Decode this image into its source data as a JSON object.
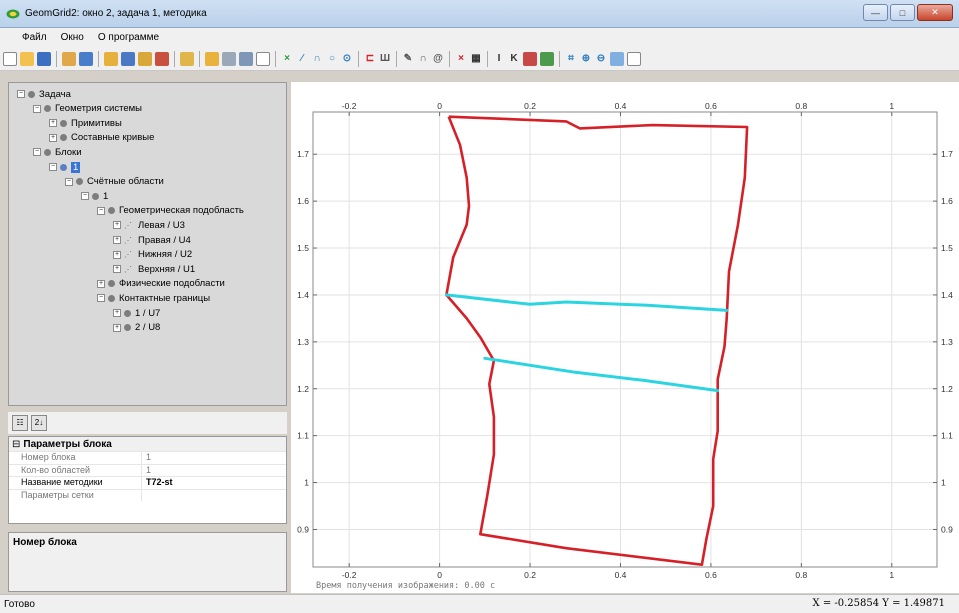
{
  "window": {
    "title": "GeomGrid2: окно 2, задача 1, методика",
    "min": "—",
    "max": "□",
    "close": "✕"
  },
  "menu": [
    "Файл",
    "Окно",
    "О программе"
  ],
  "tree": [
    {
      "label": "Задача",
      "level": 0,
      "icon": "dot"
    },
    {
      "label": "Геометрия системы",
      "level": 1,
      "icon": "dot"
    },
    {
      "label": "Примитивы",
      "level": 2,
      "icon": "dot"
    },
    {
      "label": "Составные кривые",
      "level": 2,
      "icon": "dot"
    },
    {
      "label": "Блоки",
      "level": 1,
      "icon": "dot"
    },
    {
      "label": "1",
      "level": 2,
      "icon": "dot",
      "selected": true
    },
    {
      "label": "Счётные области",
      "level": 3,
      "icon": "dot"
    },
    {
      "label": "1",
      "level": 4,
      "icon": "dot"
    },
    {
      "label": "Геометрическая подобласть",
      "level": 5,
      "icon": "dot"
    },
    {
      "label": "Левая / U3",
      "level": 6,
      "icon": "dots"
    },
    {
      "label": "Правая / U4",
      "level": 6,
      "icon": "dots"
    },
    {
      "label": "Нижняя / U2",
      "level": 6,
      "icon": "dots"
    },
    {
      "label": "Верхняя / U1",
      "level": 6,
      "icon": "dots"
    },
    {
      "label": "Физические подобласти",
      "level": 5,
      "icon": "dot"
    },
    {
      "label": "Контактные границы",
      "level": 5,
      "icon": "dot"
    },
    {
      "label": "1 / U7",
      "level": 6,
      "icon": "dot"
    },
    {
      "label": "2 / U8",
      "level": 6,
      "icon": "dot"
    }
  ],
  "prop_toolbar": {
    "categorized": "☷",
    "sort": "2↓"
  },
  "properties": {
    "section": "Параметры блока",
    "rows": [
      {
        "key": "Номер блока",
        "value": "1"
      },
      {
        "key": "Кол-во областей",
        "value": "1"
      },
      {
        "key": "Название методики",
        "value": "T72-st"
      },
      {
        "key": "Параметры сетки",
        "value": ""
      }
    ]
  },
  "description": {
    "title": "Номер блока"
  },
  "plot": {
    "xticks": [
      "-0.2",
      "0",
      "0.2",
      "0.4",
      "0.6",
      "0.8",
      "1"
    ],
    "xtick_values": [
      -0.2,
      0,
      0.2,
      0.4,
      0.6,
      0.8,
      1.0
    ],
    "yticks": [
      "1.7",
      "1.6",
      "1.5",
      "1.4",
      "1.3",
      "1.2",
      "1.1",
      "1",
      "0.9"
    ],
    "ytick_values": [
      1.7,
      1.6,
      1.5,
      1.4,
      1.3,
      1.2,
      1.1,
      1.0,
      0.9
    ],
    "xlim": [
      -0.28,
      1.1
    ],
    "ylim": [
      0.82,
      1.79
    ],
    "render_time": "Время получения изображения: 0.00 с",
    "block_outline": [
      [
        0.02,
        1.78
      ],
      [
        0.28,
        1.77
      ],
      [
        0.31,
        1.755
      ],
      [
        0.47,
        1.762
      ],
      [
        0.68,
        1.758
      ],
      [
        0.675,
        1.65
      ],
      [
        0.66,
        1.55
      ],
      [
        0.64,
        1.45
      ],
      [
        0.635,
        1.35
      ],
      [
        0.63,
        1.29
      ],
      [
        0.615,
        1.22
      ],
      [
        0.615,
        1.11
      ],
      [
        0.605,
        1.05
      ],
      [
        0.605,
        0.95
      ],
      [
        0.59,
        0.88
      ],
      [
        0.58,
        0.825
      ],
      [
        0.28,
        0.86
      ],
      [
        0.09,
        0.89
      ],
      [
        0.105,
        0.97
      ],
      [
        0.12,
        1.06
      ],
      [
        0.12,
        1.14
      ],
      [
        0.11,
        1.21
      ],
      [
        0.12,
        1.26
      ],
      [
        0.09,
        1.31
      ],
      [
        0.06,
        1.35
      ],
      [
        0.015,
        1.4
      ],
      [
        0.03,
        1.48
      ],
      [
        0.06,
        1.55
      ],
      [
        0.065,
        1.59
      ],
      [
        0.06,
        1.65
      ],
      [
        0.045,
        1.72
      ],
      [
        0.02,
        1.78
      ]
    ],
    "contact_1": [
      [
        0.015,
        1.4
      ],
      [
        0.2,
        1.38
      ],
      [
        0.28,
        1.385
      ],
      [
        0.46,
        1.378
      ],
      [
        0.635,
        1.367
      ]
    ],
    "contact_2": [
      [
        0.1,
        1.265
      ],
      [
        0.3,
        1.235
      ],
      [
        0.45,
        1.218
      ],
      [
        0.615,
        1.196
      ]
    ],
    "colors": {
      "outline": "#d62027",
      "contact": "#2ad4e0",
      "grid": "#e2e2e2"
    }
  },
  "status": {
    "text": "Готово",
    "coords": "X = -0.25854  Y = 1.49871"
  }
}
